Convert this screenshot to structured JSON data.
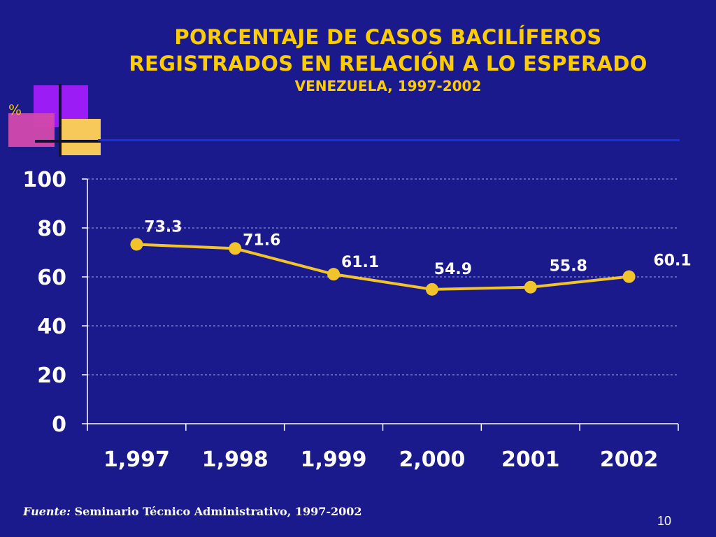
{
  "slide": {
    "title_line1": "PORCENTAJE DE CASOS BACILÍFEROS",
    "title_line2": "REGISTRADOS EN RELACIÓN A LO ESPERADO",
    "subtitle": "VENEZUELA, 1997-2002",
    "y_unit_label": "%",
    "source_label": "Fuente:",
    "source_text": "Seminario Técnico Administrativo, 1997-2002",
    "page_number": "10"
  },
  "colors": {
    "background": "#1a1a8c",
    "title": "#ffcc00",
    "line": "#f2c42c",
    "grid": "#8a8ad0",
    "text": "#ffffff"
  },
  "chart_data": {
    "type": "line",
    "title": "PORCENTAJE DE CASOS BACILÍFEROS REGISTRADOS EN RELACIÓN A LO ESPERADO",
    "categories": [
      "1,997",
      "1,998",
      "1,999",
      "2,000",
      "2001",
      "2002"
    ],
    "series": [
      {
        "values": [
          73.3,
          71.6,
          61.1,
          54.9,
          55.8,
          60.1
        ],
        "labels": [
          "73.3",
          "71.6",
          "61.1",
          "54.9",
          "55.8",
          "60.1"
        ]
      }
    ],
    "ylim": [
      0,
      100
    ],
    "yticks": [
      0,
      20,
      40,
      60,
      80,
      100
    ],
    "grid": true,
    "legend": "none"
  }
}
